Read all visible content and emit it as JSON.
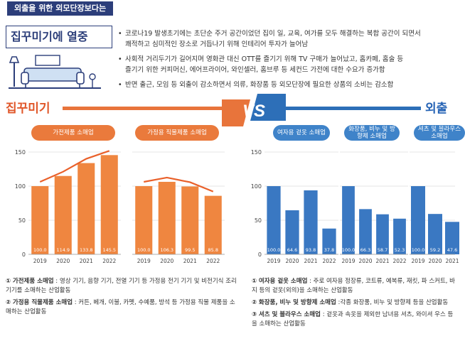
{
  "header": {
    "tag": "외출을 위한 외모단장보다는",
    "title": "집꾸미기에 열중"
  },
  "bullets": [
    "코로나19 발생초기에는 초단순 주거 공간이었던 집이 일, 교육, 여가를 모두 해결하는 복합 공간이 되면서",
    "쾌적하고 심미적인 장소로 거듭나기 위해 인테리어 투자가 늘어남",
    "사회적 거리두기가 길어지며 영화관 대신 OTT를 즐기기 위해 TV 구매가 늘어났고, 홈카페, 홈술 등",
    "즐기기 위한 커피머신, 에어프라이어, 와인셀러, 홈브루 등 세컨드 가전에 대한 수요가 증가함",
    "반면 출근, 모임 등 외출이 감소하면서 의류, 화장품 등 외모단장에 필요한 상품의 소비는 감소함"
  ],
  "sections": {
    "left_title": "집꾸미기",
    "right_title": "외출",
    "vs": "VS"
  },
  "chart_data": [
    {
      "type": "bar",
      "title": "가전제품 소매업",
      "categories": [
        "2019",
        "2020",
        "2021",
        "2022"
      ],
      "values": [
        100.0,
        114.9,
        133.8,
        145.5
      ],
      "value_labels": [
        "100.0",
        "114.9",
        "133.8",
        "145.5"
      ],
      "ylim": [
        0,
        150
      ],
      "yticks": [
        "0",
        "50",
        "100",
        "150"
      ],
      "grid": true,
      "color": "#ef8640"
    },
    {
      "type": "bar",
      "title": "가정용 직물제품 소매업",
      "categories": [
        "2019",
        "2020",
        "2021",
        "2022"
      ],
      "values": [
        100.0,
        106.3,
        99.5,
        85.8
      ],
      "value_labels": [
        "100.0",
        "106.3",
        "99.5",
        "85.8"
      ],
      "ylim": [
        0,
        150
      ],
      "grid": true,
      "color": "#ef8640"
    },
    {
      "type": "bar",
      "title": "여자용 겉옷 소매업",
      "categories": [
        "2019",
        "2020",
        "2021",
        "2022"
      ],
      "values": [
        100.0,
        64.6,
        93.8,
        37.8
      ],
      "value_labels": [
        "100.0",
        "64.6",
        "93.8",
        "37.8"
      ],
      "ylim": [
        0,
        150
      ],
      "yticks": [
        "0",
        "50",
        "100",
        "150"
      ],
      "grid": true,
      "color": "#3a78c2"
    },
    {
      "type": "bar",
      "title": "화장품, 비누 및 방향제 소매업",
      "categories": [
        "2019",
        "2020",
        "2021",
        "2022"
      ],
      "values": [
        100.0,
        66.3,
        58.7,
        52.3
      ],
      "value_labels": [
        "100.0",
        "66.3",
        "58.7",
        "52.3"
      ],
      "ylim": [
        0,
        150
      ],
      "grid": true,
      "color": "#3a78c2"
    },
    {
      "type": "bar",
      "title": "셔츠 및 블라우스 소매업",
      "categories": [
        "2019",
        "2020",
        "2021"
      ],
      "values": [
        100.0,
        59.2,
        47.6
      ],
      "value_labels": [
        "100.0",
        "59.2",
        "47.6"
      ],
      "ylim": [
        0,
        150
      ],
      "grid": true,
      "color": "#3a78c2"
    }
  ],
  "notes_left": [
    {
      "num": "①",
      "term": "가전제품 소매업",
      "text": " : 영상 기기, 음향 기기, 전열 기기 등 가정용 전기 기기 및 비전기식 조리 기기를 소매하는 산업활동"
    },
    {
      "num": "②",
      "term": "가정용 직물제품 소매업",
      "text": " : 커튼, 베개, 이불, 카펫, 수예품, 방석 등 가정용 직물 제품을 소매하는 산업활동"
    }
  ],
  "notes_right": [
    {
      "num": "①",
      "term": "여자용 겉옷 소매업",
      "text": " : 주로 여자용 정장류, 코트류, 예복류, 재킷, 파 스커트, 바지 등의 겉옷(외의)을 소매하는 산업활동"
    },
    {
      "num": "②",
      "term": "화장품, 비누 및 방향제 소매업",
      "text": " :각종 화장품, 비누 및 방향제 등을 산업활동"
    },
    {
      "num": "③",
      "term": "셔츠 및 블라우스 소매업",
      "text": " : 겉옷과 속옷을 제외한 남녀용 셔츠, 와이셔 우스 등을 소매하는 산업활동"
    }
  ]
}
